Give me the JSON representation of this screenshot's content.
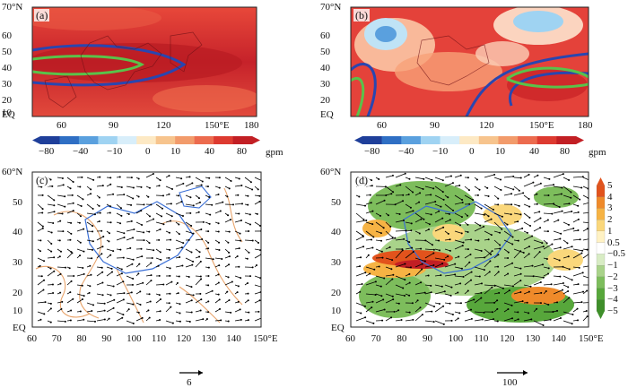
{
  "panels": {
    "a": {
      "label": "(a)"
    },
    "b": {
      "label": "(b)"
    },
    "c": {
      "label": "(c)"
    },
    "d": {
      "label": "(d)"
    }
  },
  "top_axes": {
    "y_ticks": [
      "70°N",
      "60",
      "50",
      "40",
      "30",
      "20",
      "10",
      "EQ"
    ],
    "x_ticks": [
      "60",
      "90",
      "120",
      "150°E",
      "180"
    ]
  },
  "bottom_axes": {
    "y_ticks": [
      "60°N",
      "50",
      "40",
      "30",
      "20",
      "10",
      "EQ"
    ],
    "x_ticks": [
      "60",
      "70",
      "80",
      "90",
      "100",
      "110",
      "120",
      "130",
      "140",
      "150°E"
    ]
  },
  "colorbar_gpm": {
    "labels": [
      "−80",
      "−40",
      "−10",
      "0",
      "10",
      "40",
      "80"
    ],
    "unit": "gpm",
    "colors": [
      "#1f3f9a",
      "#2f6fc4",
      "#5aa0de",
      "#9fd3f2",
      "#d8eefa",
      "#fde9c4",
      "#f7c48d",
      "#f29b6b",
      "#ec6b4e",
      "#dd3a30",
      "#c21f24"
    ]
  },
  "colorbar_d": {
    "labels": [
      "5",
      "4",
      "3",
      "2",
      "1",
      "0.5",
      "−0.5",
      "−1",
      "−2",
      "−3",
      "−4",
      "−5"
    ],
    "colors": [
      "#e2531c",
      "#ef8a2a",
      "#f6b344",
      "#fad77b",
      "#fff2c4",
      "#ffffff",
      "#d8ecc4",
      "#a9d38a",
      "#7dbd5c",
      "#57a73b",
      "#3f8f2a"
    ]
  },
  "reference_vectors": {
    "c": "6",
    "d": "100"
  },
  "legend_colors": {
    "contour_blue": "#2946b0",
    "contour_green": "#5ac24a",
    "coastline_orange": "#e8a36a",
    "plateau_blue": "#3a6fd6"
  }
}
